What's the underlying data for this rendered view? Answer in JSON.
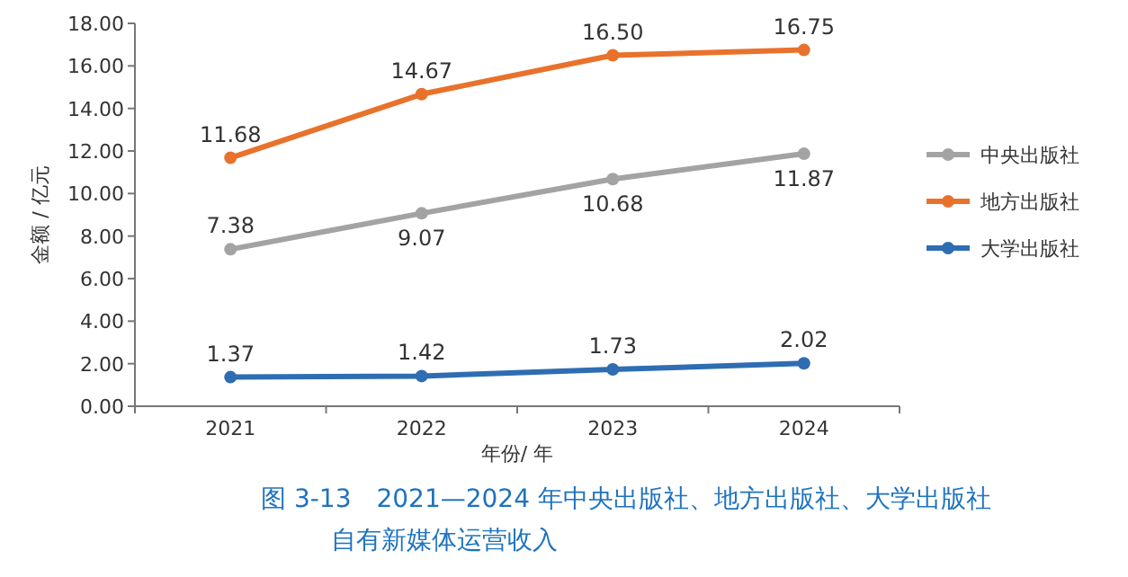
{
  "chart_data": {
    "type": "line",
    "title": "图 3-13　2021—2024 年中央出版社、地方出版社、大学出版社",
    "subtitle": "自有新媒体运营收入",
    "xlabel": "年份/ 年",
    "ylabel": "金额 / 亿元",
    "categories": [
      "2021",
      "2022",
      "2023",
      "2024"
    ],
    "series": [
      {
        "name": "中央出版社",
        "color": "#a3a3a3",
        "values": [
          7.38,
          9.07,
          10.68,
          11.87
        ],
        "value_labels": [
          "7.38",
          "9.07",
          "10.68",
          "11.87"
        ]
      },
      {
        "name": "地方出版社",
        "color": "#e8722c",
        "values": [
          11.68,
          14.67,
          16.5,
          16.75
        ],
        "value_labels": [
          "11.68",
          "14.67",
          "16.50",
          "16.75"
        ]
      },
      {
        "name": "大学出版社",
        "color": "#2f6db3",
        "values": [
          1.37,
          1.42,
          1.73,
          2.02
        ],
        "value_labels": [
          "1.37",
          "1.42",
          "1.73",
          "2.02"
        ]
      }
    ],
    "ylim": [
      0,
      18
    ],
    "yticks": [
      {
        "value": 0,
        "label": "0.00"
      },
      {
        "value": 2,
        "label": "2.00"
      },
      {
        "value": 4,
        "label": "4.00"
      },
      {
        "value": 6,
        "label": "6.00"
      },
      {
        "value": 8,
        "label": "8.00"
      },
      {
        "value": 10,
        "label": "10.00"
      },
      {
        "value": 12,
        "label": "12.00"
      },
      {
        "value": 14,
        "label": "14.00"
      },
      {
        "value": 16,
        "label": "16.00"
      },
      {
        "value": 18,
        "label": "18.00"
      }
    ],
    "legend": "right",
    "marker": "circle",
    "line_style": "solid",
    "grid": false
  }
}
